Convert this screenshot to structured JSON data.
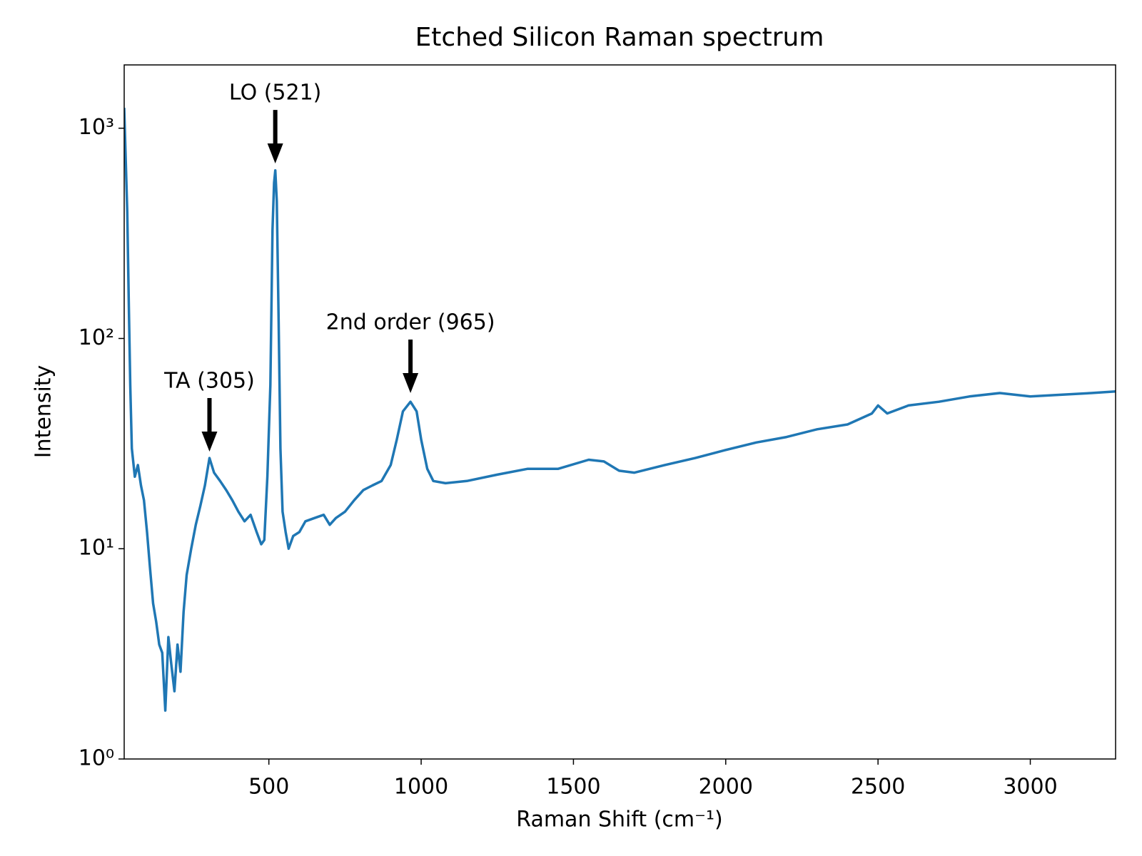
{
  "chart_data": {
    "type": "line",
    "title": "Etched Silicon Raman spectrum",
    "xlabel": "Raman Shift (cm⁻¹)",
    "ylabel": "Intensity",
    "log_y": true,
    "color": "#1f77b4",
    "xlim": [
      25,
      3280
    ],
    "ylim": [
      1,
      2000
    ],
    "xticks": [
      500,
      1000,
      1500,
      2000,
      2500,
      3000
    ],
    "yticks": [
      {
        "value": 1,
        "label": "10⁰"
      },
      {
        "value": 10,
        "label": "10¹"
      },
      {
        "value": 100,
        "label": "10²"
      },
      {
        "value": 1000,
        "label": "10³"
      }
    ],
    "x": [
      25,
      35,
      40,
      45,
      50,
      60,
      70,
      80,
      90,
      100,
      110,
      120,
      130,
      140,
      150,
      160,
      170,
      180,
      190,
      200,
      210,
      220,
      230,
      245,
      260,
      275,
      290,
      305,
      320,
      340,
      360,
      380,
      400,
      420,
      440,
      460,
      475,
      485,
      495,
      505,
      512,
      517,
      521,
      526,
      532,
      538,
      545,
      555,
      565,
      580,
      600,
      620,
      650,
      680,
      700,
      720,
      750,
      780,
      810,
      840,
      870,
      900,
      920,
      940,
      965,
      985,
      1000,
      1020,
      1040,
      1080,
      1150,
      1250,
      1350,
      1450,
      1550,
      1600,
      1650,
      1700,
      1800,
      1900,
      2000,
      2100,
      2200,
      2300,
      2400,
      2480,
      2500,
      2530,
      2600,
      2700,
      2800,
      2900,
      3000,
      3100,
      3200,
      3280
    ],
    "values": [
      1250,
      400,
      150,
      60,
      30,
      22,
      25,
      20,
      17,
      12,
      8,
      5.5,
      4.5,
      3.5,
      3.2,
      1.7,
      3.8,
      2.8,
      2.1,
      3.5,
      2.6,
      5,
      7.5,
      10,
      13,
      16,
      20,
      27,
      23,
      21,
      19,
      17,
      15,
      13.5,
      14.5,
      12,
      10.5,
      11,
      22,
      60,
      330,
      550,
      630,
      450,
      120,
      30,
      15,
      12,
      10,
      11.5,
      12,
      13.5,
      14,
      14.5,
      13,
      14,
      15,
      17,
      19,
      20,
      21,
      25,
      33,
      45,
      50,
      45,
      33,
      24,
      21,
      20.5,
      21,
      22.5,
      24,
      24,
      26.5,
      26,
      23.5,
      23,
      25,
      27,
      29.5,
      32,
      34,
      37,
      39,
      44,
      48,
      44,
      48,
      50,
      53,
      55,
      53,
      54,
      55,
      56
    ],
    "annotations": [
      {
        "text": "TA (305)",
        "x": 305,
        "y": 29
      },
      {
        "text": "LO (521)",
        "x": 521,
        "y": 680
      },
      {
        "text": "2nd order (965)",
        "x": 965,
        "y": 55
      }
    ]
  }
}
